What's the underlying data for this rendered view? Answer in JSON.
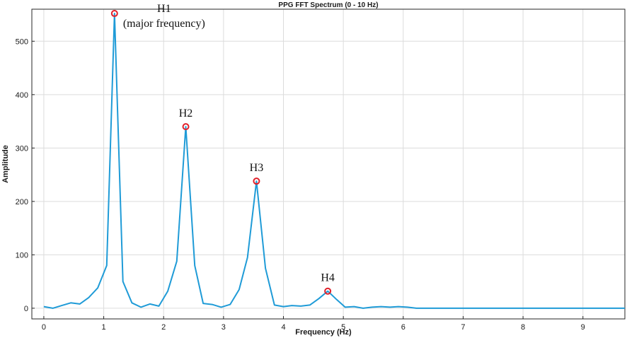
{
  "chart_data": {
    "type": "line",
    "title": "PPG FFT Spectrum (0 - 10 Hz)",
    "xlabel": "Frequency (Hz)",
    "ylabel": "Amplitude",
    "xlim": [
      -0.2,
      9.7
    ],
    "ylim": [
      -20,
      560
    ],
    "grid": true,
    "xticks": [
      0,
      1,
      2,
      3,
      4,
      5,
      6,
      7,
      8,
      9
    ],
    "yticks": [
      0,
      100,
      200,
      300,
      400,
      500
    ],
    "series": [
      {
        "color": "#1f9bd7",
        "x": [
          0,
          0.15,
          0.3,
          0.45,
          0.6,
          0.75,
          0.9,
          1.05,
          1.18,
          1.32,
          1.47,
          1.62,
          1.77,
          1.92,
          2.07,
          2.22,
          2.37,
          2.52,
          2.66,
          2.81,
          2.96,
          3.11,
          3.26,
          3.4,
          3.55,
          3.7,
          3.85,
          4.0,
          4.14,
          4.29,
          4.44,
          4.59,
          4.74,
          4.89,
          5.03,
          5.18,
          5.33,
          5.48,
          5.63,
          5.78,
          5.92,
          6.07,
          6.22,
          6.5,
          7.0,
          7.5,
          8.0,
          8.5,
          9.0,
          9.5,
          9.7
        ],
        "y": [
          3,
          0,
          5,
          10,
          8,
          20,
          38,
          80,
          552,
          50,
          10,
          2,
          8,
          4,
          32,
          88,
          340,
          80,
          9,
          7,
          2,
          7,
          35,
          95,
          238,
          75,
          6,
          3,
          5,
          4,
          6,
          18,
          32,
          16,
          2,
          3,
          0,
          2,
          3,
          2,
          3,
          2,
          0,
          0,
          0,
          0,
          0,
          0,
          0,
          0,
          0
        ]
      }
    ],
    "peaks": [
      {
        "label": "H1",
        "sublabel": "(major frequency)",
        "x": 1.18,
        "y": 552
      },
      {
        "label": "H2",
        "x": 2.37,
        "y": 340
      },
      {
        "label": "H3",
        "x": 3.55,
        "y": 238
      },
      {
        "label": "H4",
        "x": 4.74,
        "y": 32
      }
    ],
    "marker_color": "#e0202a"
  }
}
